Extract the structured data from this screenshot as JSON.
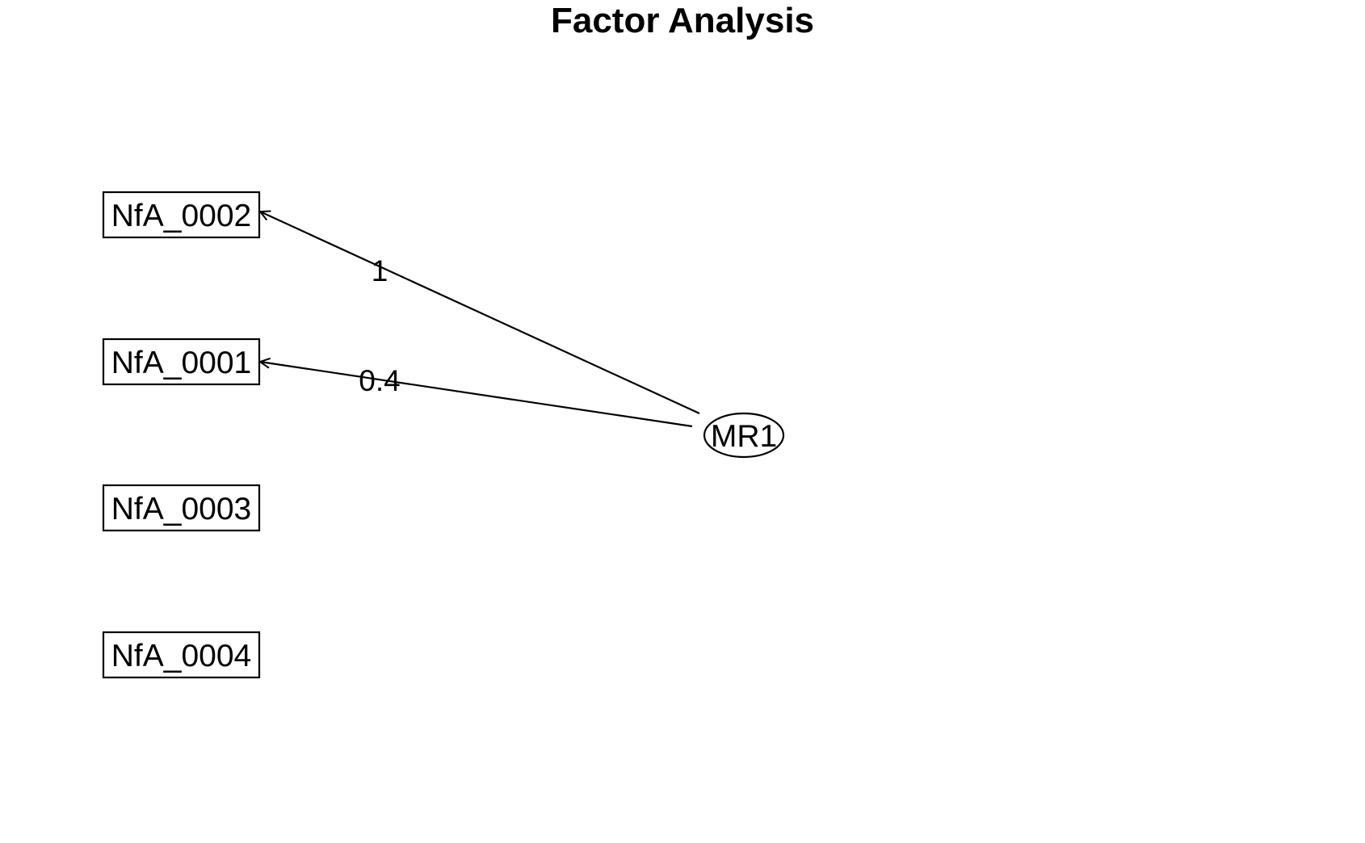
{
  "title": "Factor Analysis",
  "observed": [
    {
      "id": "NfA_0002",
      "label": "NfA_0002"
    },
    {
      "id": "NfA_0001",
      "label": "NfA_0001"
    },
    {
      "id": "NfA_0003",
      "label": "NfA_0003"
    },
    {
      "id": "NfA_0004",
      "label": "NfA_0004"
    }
  ],
  "factors": [
    {
      "id": "MR1",
      "label": "MR1"
    }
  ],
  "loadings": [
    {
      "from": "MR1",
      "to": "NfA_0002",
      "label": "1"
    },
    {
      "from": "MR1",
      "to": "NfA_0001",
      "label": "0.4"
    }
  ]
}
